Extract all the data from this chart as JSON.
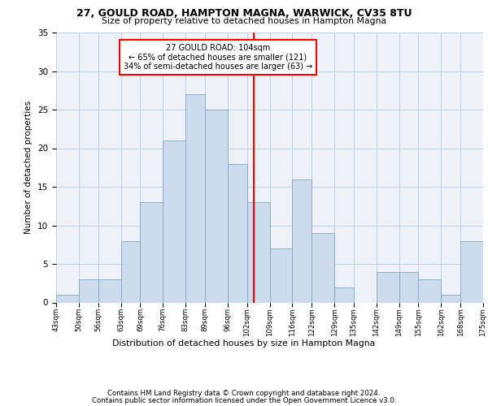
{
  "title1": "27, GOULD ROAD, HAMPTON MAGNA, WARWICK, CV35 8TU",
  "title2": "Size of property relative to detached houses in Hampton Magna",
  "xlabel_bottom": "Distribution of detached houses by size in Hampton Magna",
  "ylabel": "Number of detached properties",
  "bar_color": "#ccdcec",
  "bar_edge_color": "#7aaac8",
  "grid_color": "#c0cfe0",
  "background_color": "#eef2f8",
  "vline_x": 104,
  "vline_color": "red",
  "annotation_text": "27 GOULD ROAD: 104sqm\n← 65% of detached houses are smaller (121)\n34% of semi-detached houses are larger (63) →",
  "annotation_box_color": "white",
  "annotation_box_edge": "red",
  "bins": [
    43,
    50,
    56,
    63,
    69,
    76,
    83,
    89,
    96,
    102,
    109,
    116,
    122,
    129,
    135,
    142,
    149,
    155,
    162,
    168,
    175
  ],
  "bin_labels": [
    "43sqm",
    "50sqm",
    "56sqm",
    "63sqm",
    "69sqm",
    "76sqm",
    "83sqm",
    "89sqm",
    "96sqm",
    "102sqm",
    "109sqm",
    "116sqm",
    "122sqm",
    "129sqm",
    "135sqm",
    "142sqm",
    "149sqm",
    "155sqm",
    "162sqm",
    "168sqm",
    "175sqm"
  ],
  "counts": [
    1,
    3,
    3,
    8,
    13,
    21,
    27,
    25,
    18,
    13,
    7,
    16,
    9,
    2,
    0,
    4,
    4,
    3,
    1,
    8
  ],
  "ylim": [
    0,
    35
  ],
  "yticks": [
    0,
    5,
    10,
    15,
    20,
    25,
    30,
    35
  ],
  "footer1": "Contains HM Land Registry data © Crown copyright and database right 2024.",
  "footer2": "Contains public sector information licensed under the Open Government Licence v3.0."
}
